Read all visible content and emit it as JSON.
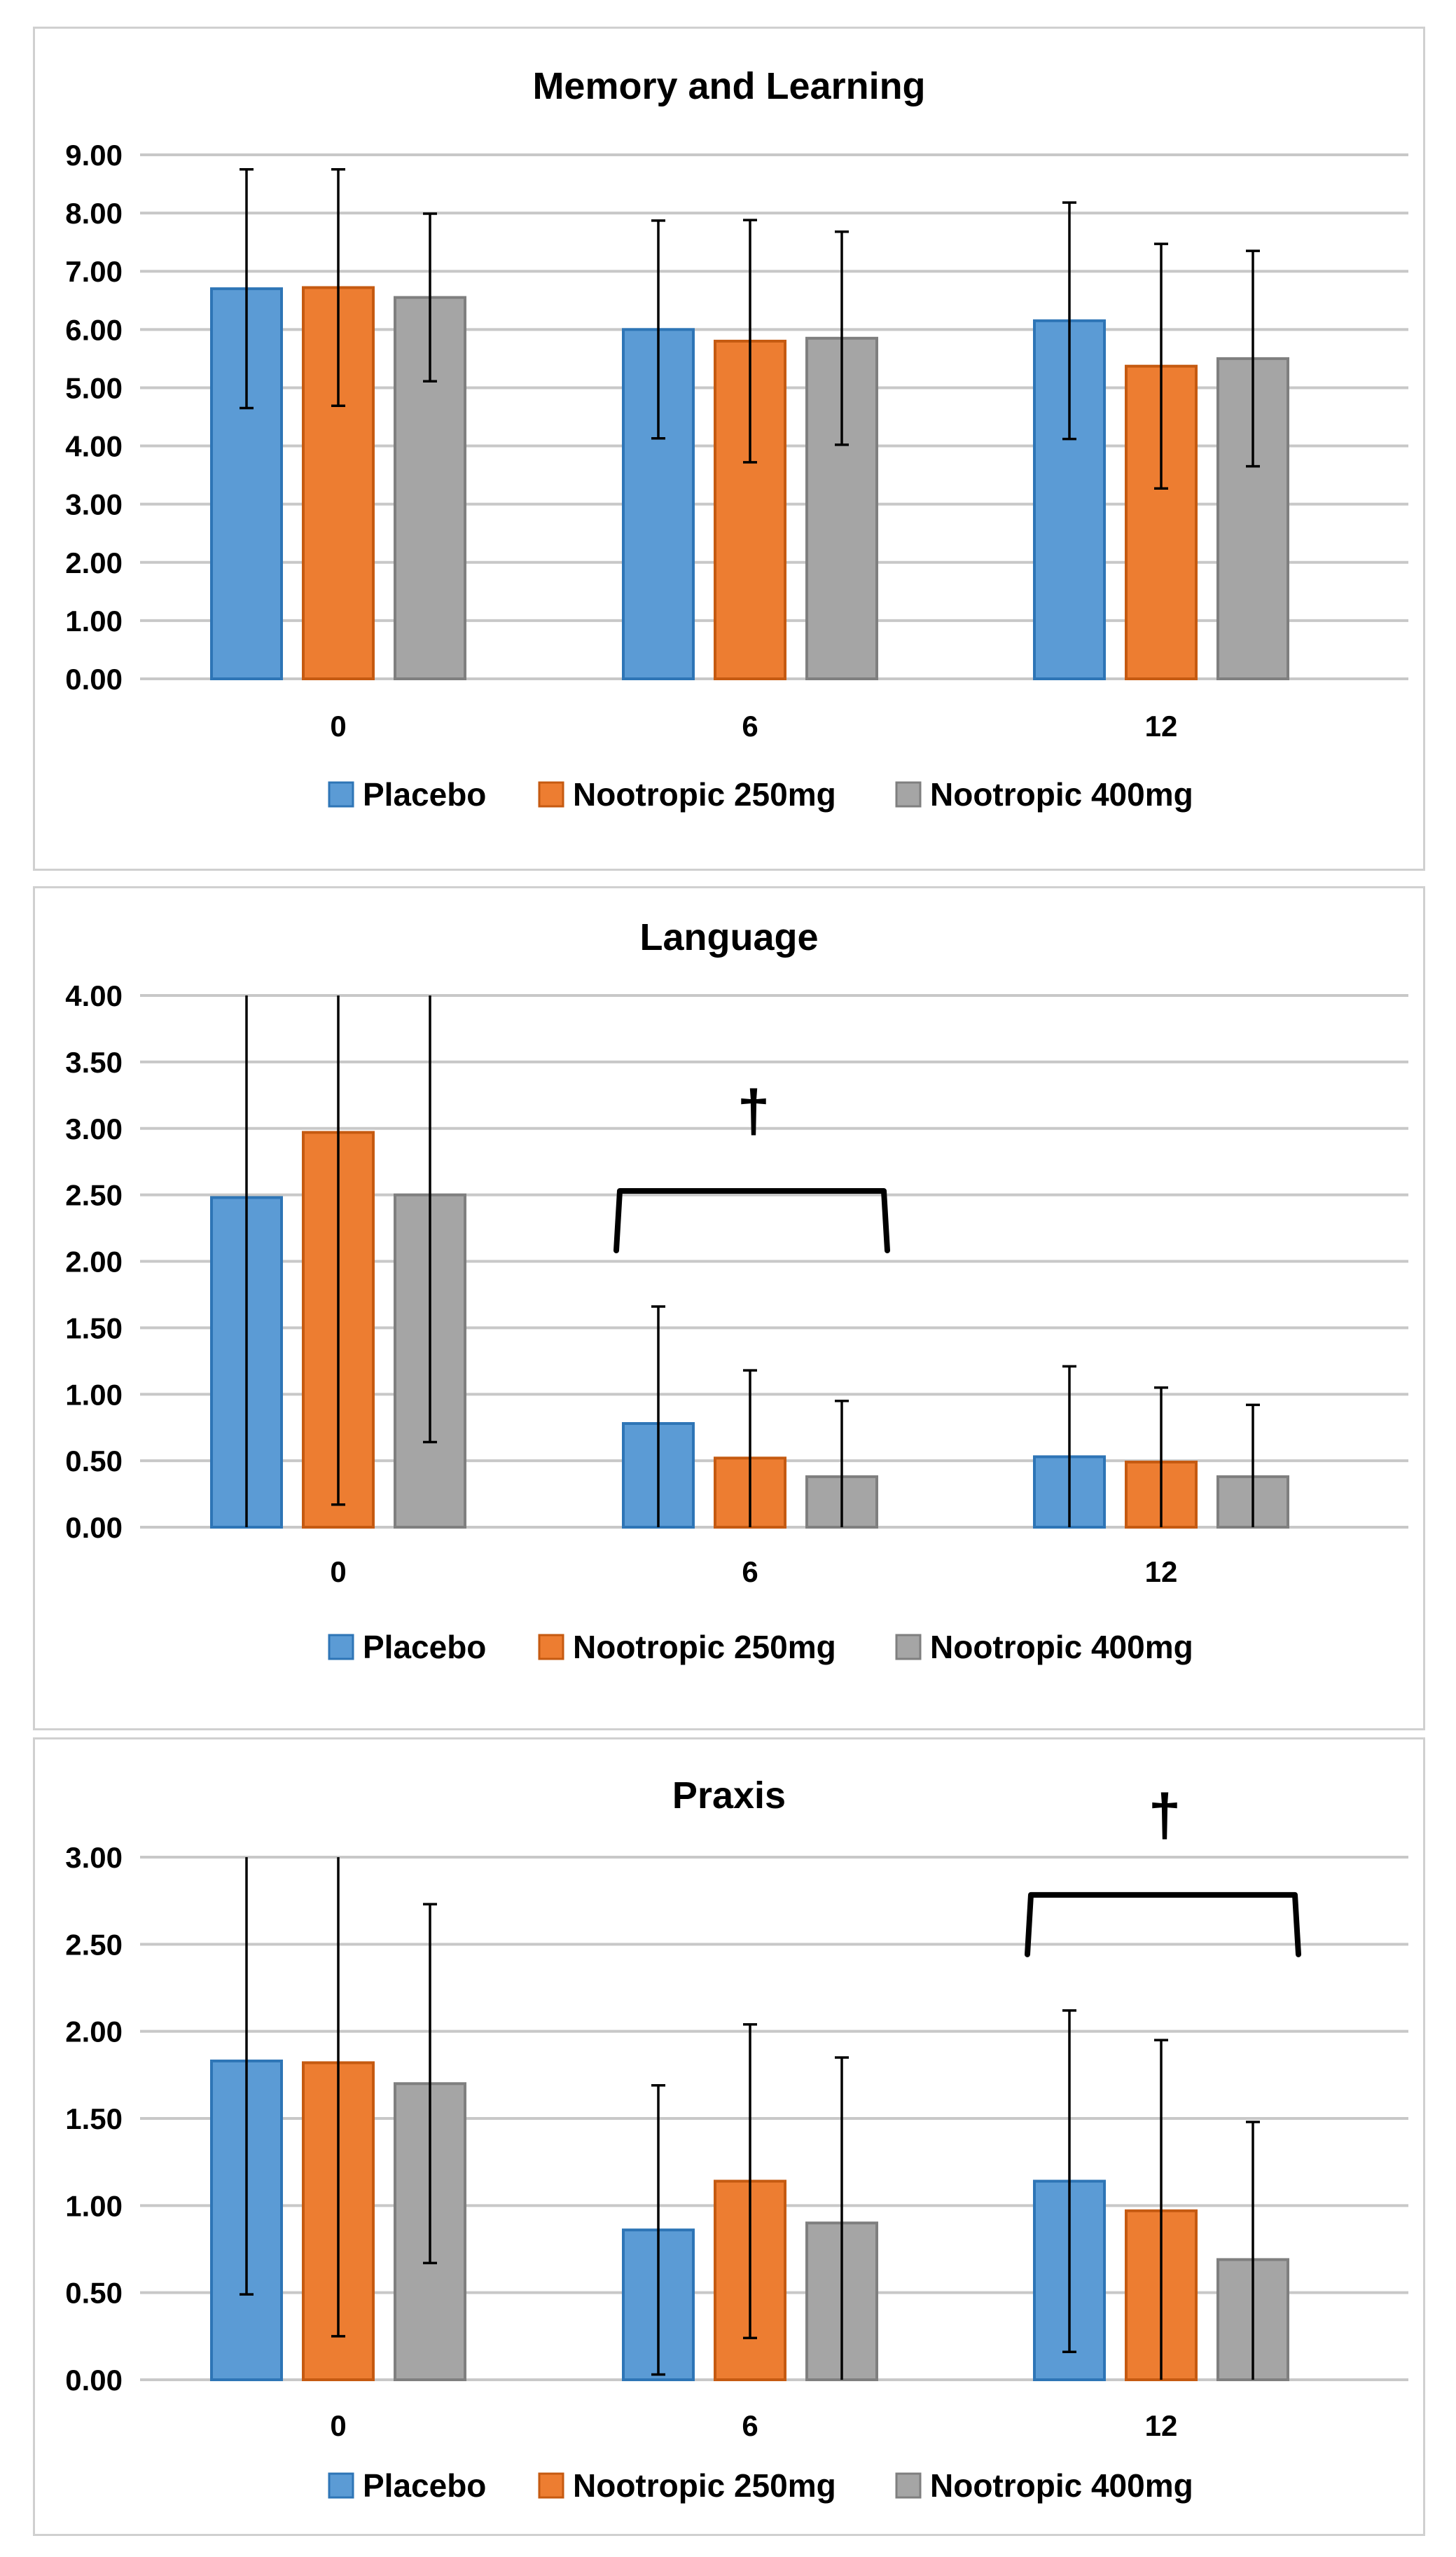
{
  "colors": {
    "placebo": "#5b9bd5",
    "placebo_edge": "#2e75b6",
    "nootropic_250": "#ed7d31",
    "nootropic_250_edge": "#c55a11",
    "nootropic_400": "#a5a5a5",
    "nootropic_400_edge": "#7f7f7f"
  },
  "chart_data": [
    {
      "type": "bar",
      "title": "Memory and Learning",
      "categories": [
        "0",
        "6",
        "12"
      ],
      "ylim": [
        0,
        9
      ],
      "yticks": [
        "0.00",
        "1.00",
        "2.00",
        "3.00",
        "4.00",
        "5.00",
        "6.00",
        "7.00",
        "8.00",
        "9.00"
      ],
      "series": [
        {
          "name": "Placebo",
          "values": [
            6.7,
            6.0,
            6.15
          ],
          "errors": [
            2.05,
            1.87,
            2.03
          ]
        },
        {
          "name": "Nootropic 250mg",
          "values": [
            6.72,
            5.8,
            5.37
          ],
          "errors": [
            2.03,
            2.08,
            2.1
          ]
        },
        {
          "name": "Nootropic 400mg",
          "values": [
            6.55,
            5.85,
            5.5
          ],
          "errors": [
            1.44,
            1.83,
            1.85
          ]
        }
      ],
      "annotations": []
    },
    {
      "type": "bar",
      "title": "Language",
      "categories": [
        "0",
        "6",
        "12"
      ],
      "ylim": [
        0,
        4
      ],
      "yticks": [
        "0.00",
        "0.50",
        "1.00",
        "1.50",
        "2.00",
        "2.50",
        "3.00",
        "3.50",
        "4.00"
      ],
      "series": [
        {
          "name": "Placebo",
          "values": [
            2.48,
            0.78,
            0.53
          ],
          "errors": [
            2.48,
            0.88,
            0.68
          ]
        },
        {
          "name": "Nootropic 250mg",
          "values": [
            2.97,
            0.52,
            0.49
          ],
          "errors": [
            2.8,
            0.66,
            0.56
          ]
        },
        {
          "name": "Nootropic 400mg",
          "values": [
            2.5,
            0.38,
            0.38
          ],
          "errors": [
            1.86,
            0.57,
            0.54
          ]
        }
      ],
      "annotations": [
        {
          "symbol": "†",
          "group": "6"
        }
      ]
    },
    {
      "type": "bar",
      "title": "Praxis",
      "categories": [
        "0",
        "6",
        "12"
      ],
      "ylim": [
        0,
        3
      ],
      "yticks": [
        "0.00",
        "0.50",
        "1.00",
        "1.50",
        "2.00",
        "2.50",
        "3.00"
      ],
      "series": [
        {
          "name": "Placebo",
          "values": [
            1.83,
            0.86,
            1.14
          ],
          "errors": [
            1.34,
            0.83,
            0.98
          ]
        },
        {
          "name": "Nootropic 250mg",
          "values": [
            1.82,
            1.14,
            0.97
          ],
          "errors": [
            1.57,
            0.9,
            0.98
          ]
        },
        {
          "name": "Nootropic 400mg",
          "values": [
            1.7,
            0.9,
            0.69
          ],
          "errors": [
            1.03,
            0.95,
            0.79
          ]
        }
      ],
      "annotations": [
        {
          "symbol": "†",
          "group": "12"
        }
      ]
    }
  ]
}
